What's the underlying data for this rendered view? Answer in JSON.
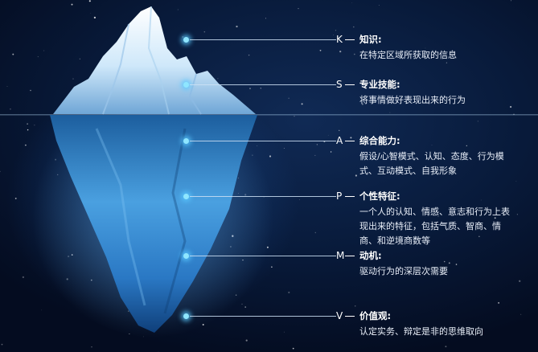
{
  "colors": {
    "background": "#06142e",
    "iceberg_peak": "#cfe8fa",
    "iceberg_underwater": "#4aa0e0",
    "marker_glow": "#8fe6ff",
    "text": "#ffffff"
  },
  "layers": [
    {
      "letter": "K",
      "title": "知识:",
      "description": "在特定区域所获取的信息"
    },
    {
      "letter": "S",
      "title": "专业技能:",
      "description": "将事情做好表现出来的行为"
    },
    {
      "letter": "A",
      "title": "综合能力:",
      "description": "假设/心智模式、认知、态度、行为模式、互动模式、自我形象"
    },
    {
      "letter": "P",
      "title": "个性特征:",
      "description": "一个人的认知、情感、意志和行为上表现出来的特征，包括气质、智商、情商、和逆境商数等"
    },
    {
      "letter": "M",
      "title": "动机:",
      "description": "驱动行为的深层次需要"
    },
    {
      "letter": "V",
      "title": "价值观:",
      "description": "认定实务、辩定是非的思维取向"
    }
  ]
}
